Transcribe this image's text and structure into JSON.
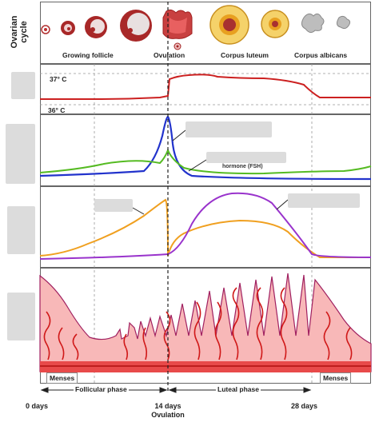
{
  "row_title_line1": "Ovarian",
  "row_title_line2": "cycle",
  "follicle_labels": {
    "growing": "Growing follicle",
    "ovulation": "Ovulation",
    "corpus_luteum": "Corpus luteum",
    "corpus_albicans": "Corpus albicans"
  },
  "temperature": {
    "high": "37° C",
    "low": "36° C"
  },
  "hormone_partial_label": "hormone (FSH)",
  "menses_left": "Menses",
  "menses_right": "Menses",
  "phases": {
    "follicular": "Follicular phase",
    "luteal": "Luteal phase"
  },
  "days": {
    "start": "0 days",
    "mid": "14 days",
    "mid_sub": "Ovulation",
    "end": "28 days"
  },
  "colors": {
    "temperature": "#cc2020",
    "lh": "#2233cc",
    "fsh": "#55bb22",
    "estrogen": "#f0a020",
    "progesterone": "#9933cc",
    "endometrium": "#f8b8b8",
    "vessels": "#d01818"
  }
}
